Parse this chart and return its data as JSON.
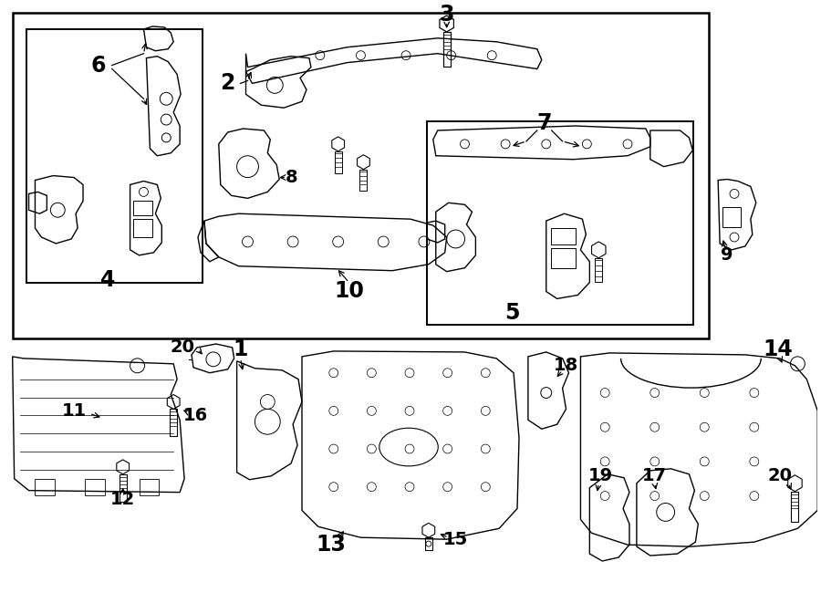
{
  "bg_color": "#ffffff",
  "line_color": "#000000",
  "fig_w": 9.0,
  "fig_h": 6.61,
  "dpi": 100
}
